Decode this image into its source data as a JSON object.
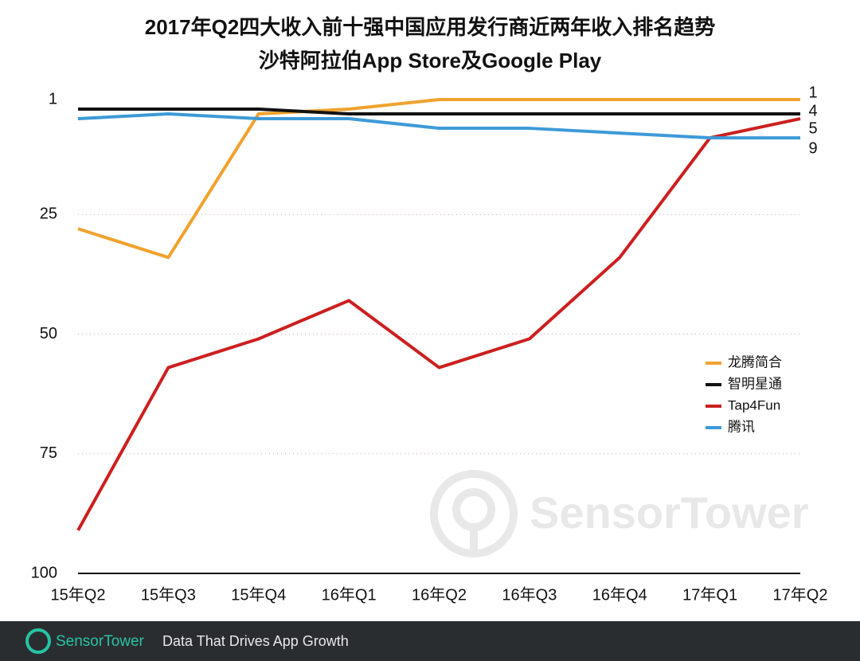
{
  "chart_data": {
    "type": "line",
    "title": "2017年Q2四大收入前十强中国应用发行商近两年收入排名趋势",
    "subtitle": "沙特阿拉伯App Store及Google Play",
    "categories": [
      "15年Q2",
      "15年Q3",
      "15年Q4",
      "16年Q1",
      "16年Q2",
      "16年Q3",
      "16年Q4",
      "17年Q1",
      "17年Q2"
    ],
    "series": [
      {
        "name": "龙腾简合",
        "color": "#f0a22e",
        "values": [
          28,
          34,
          4,
          3,
          1,
          1,
          1,
          1,
          1
        ]
      },
      {
        "name": "智明星通",
        "color": "#111111",
        "values": [
          3,
          3,
          3,
          4,
          4,
          4,
          4,
          4,
          4
        ]
      },
      {
        "name": "Tap4Fun",
        "color": "#cc1f1f",
        "values": [
          91,
          57,
          51,
          43,
          57,
          51,
          34,
          9,
          5
        ]
      },
      {
        "name": "腾讯",
        "color": "#3d9ad8",
        "values": [
          5,
          4,
          5,
          5,
          7,
          7,
          8,
          9,
          9
        ]
      }
    ],
    "ylim": [
      100,
      1
    ],
    "yticks": [
      1,
      25,
      50,
      75,
      100
    ],
    "grid": true,
    "legend": "right",
    "watermark": "SensorTower",
    "footer": {
      "brand": "SensorTower",
      "tagline": "Data That Drives App Growth"
    }
  }
}
